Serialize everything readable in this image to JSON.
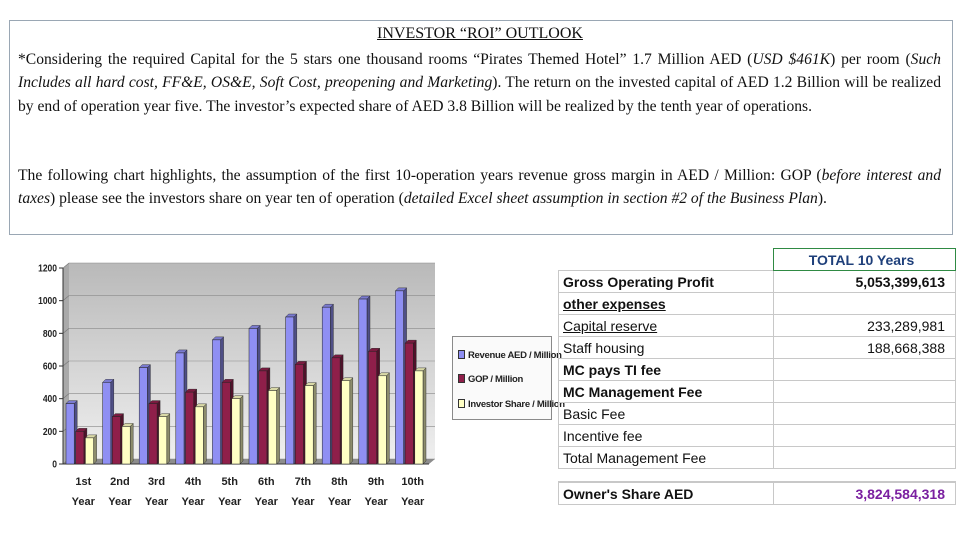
{
  "title": "INVESTOR “ROI” OUTLOOK",
  "paragraph1": {
    "s1": "*Considering the required Capital for the 5 stars one thousand rooms “Pirates Themed Hotel” 1.7 Million AED (",
    "s2": "USD $461K",
    "s3": ") per room (",
    "s4": "Such Includes all hard cost, FF&E, OS&E, Soft Cost, preopening and Marketing",
    "s5": "). The return on the invested capital of AED 1.2 Billion will be realized by end of operation year five. The investor’s expected share of AED 3.8 Billion will be realized by the tenth year of operations."
  },
  "paragraph2": {
    "s1": "The following chart highlights, the assumption of the first 10-operation years revenue gross margin in AED / Million: GOP (",
    "s2": "before interest and taxes",
    "s3": ") please see the investors share on year ten of operation (",
    "s4": "detailed Excel sheet assumption in section #2 of the Business Plan",
    "s5": ")."
  },
  "chart_data": {
    "type": "bar",
    "categories": [
      "1st Year",
      "2nd Year",
      "3rd Year",
      "4th Year",
      "5th Year",
      "6th Year",
      "7th Year",
      "8th Year",
      "9th Year",
      "10th Year"
    ],
    "category_lines": [
      [
        "1st",
        "Year"
      ],
      [
        "2nd",
        "Year"
      ],
      [
        "3rd",
        "Year"
      ],
      [
        "4th",
        "Year"
      ],
      [
        "5th",
        "Year"
      ],
      [
        "6th",
        "Year"
      ],
      [
        "7th",
        "Year"
      ],
      [
        "8th",
        "Year"
      ],
      [
        "9th",
        "Year"
      ],
      [
        "10th",
        "Year"
      ]
    ],
    "series": [
      {
        "name": "Revenue AED / Million",
        "color": "#8f8ff3",
        "values": [
          370,
          500,
          590,
          680,
          760,
          830,
          900,
          960,
          1010,
          1060
        ]
      },
      {
        "name": "GOP / Million",
        "color": "#8f1f4a",
        "values": [
          200,
          290,
          370,
          440,
          500,
          570,
          610,
          650,
          690,
          740
        ]
      },
      {
        "name": "Investor Share / Million",
        "color": "#ffffc4",
        "values": [
          160,
          230,
          290,
          350,
          400,
          450,
          480,
          510,
          540,
          570
        ]
      }
    ],
    "yticks": [
      "0",
      "200",
      "400",
      "600",
      "800",
      "1000",
      "1200"
    ],
    "ylim": [
      0,
      1200
    ]
  },
  "table": {
    "header": "TOTAL 10 Years",
    "rows": [
      {
        "label": "Gross Operating Profit",
        "value": "5,053,399,613"
      },
      {
        "label": "other expenses",
        "value": ""
      },
      {
        "label": "Capital reserve",
        "value": "233,289,981"
      },
      {
        "label": "Staff housing",
        "value": "188,668,388"
      },
      {
        "label": "MC pays TI fee",
        "value": ""
      },
      {
        "label": "MC Management Fee",
        "value": ""
      },
      {
        "label": "Basic Fee",
        "value": ""
      },
      {
        "label": "Incentive fee",
        "value": ""
      },
      {
        "label": "Total Management Fee",
        "value": ""
      }
    ],
    "owner_label": "Owner's  Share AED",
    "owner_value": "3,824,584,318"
  }
}
